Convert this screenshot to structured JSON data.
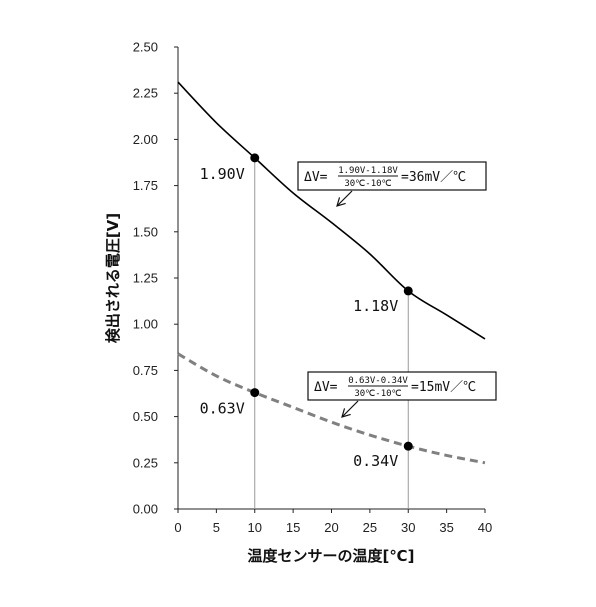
{
  "chart_data": {
    "type": "line",
    "xlabel": "温度センサーの温度[℃]",
    "ylabel": "検出される電圧[V]",
    "xlim": [
      0,
      40
    ],
    "ylim": [
      0,
      2.5
    ],
    "x_ticks": [
      "0",
      "5",
      "10",
      "15",
      "20",
      "25",
      "30",
      "35",
      "40"
    ],
    "y_ticks": [
      "0.00",
      "0.25",
      "0.50",
      "0.75",
      "1.00",
      "1.25",
      "1.50",
      "1.75",
      "2.00",
      "2.25",
      "2.50"
    ],
    "grid": false,
    "series": [
      {
        "style": "solid",
        "color": "#000000",
        "x": [
          0,
          5,
          10,
          15,
          20,
          25,
          30,
          35,
          40
        ],
        "y": [
          2.31,
          2.09,
          1.9,
          1.71,
          1.55,
          1.38,
          1.18,
          1.05,
          0.92
        ]
      },
      {
        "style": "dashed",
        "color": "#808080",
        "x": [
          0,
          5,
          10,
          15,
          20,
          25,
          30,
          35,
          40
        ],
        "y": [
          0.84,
          0.72,
          0.63,
          0.55,
          0.47,
          0.4,
          0.34,
          0.29,
          0.25
        ]
      }
    ],
    "points": [
      {
        "x": 10,
        "y": 1.9,
        "label": "1.90V"
      },
      {
        "x": 30,
        "y": 1.18,
        "label": "1.18V"
      },
      {
        "x": 10,
        "y": 0.63,
        "label": "0.63V"
      },
      {
        "x": 30,
        "y": 0.34,
        "label": "0.34V"
      }
    ],
    "annotations": [
      {
        "prefix": "ΔV=",
        "numerator": "1.90V-1.18V",
        "denominator": "30℃-10℃",
        "result": "=36mV／℃"
      },
      {
        "prefix": "ΔV=",
        "numerator": "0.63V-0.34V",
        "denominator": "30℃-10℃",
        "result": "=15mV／℃"
      }
    ]
  }
}
